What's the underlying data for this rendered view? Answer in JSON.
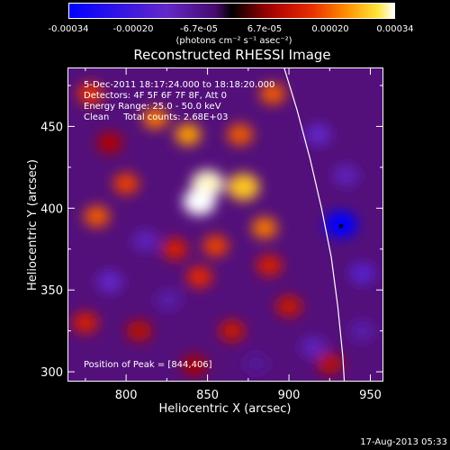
{
  "colorbar": {
    "ticks": [
      "-0.00034",
      "-0.00020",
      "-6.7e-05",
      "6.7e-05",
      "0.00020",
      "0.00034"
    ],
    "units": "(photons cm⁻² s⁻¹ asec⁻²)"
  },
  "title": "Reconstructed RHESSI Image",
  "annotations": {
    "time": "5-Dec-2011 18:17:24.000 to 18:18:20.000",
    "detectors": "Detectors: 4F 5F 6F 7F 8F, Att 0",
    "energy": "Energy Range: 25.0 - 50.0 keV",
    "clean": "Clean     Total counts: 2.68E+03",
    "peak": "Position of Peak = [844,406]"
  },
  "chart_data": {
    "type": "heatmap",
    "title": "Reconstructed RHESSI Image",
    "xlabel": "Heliocentric X (arcsec)",
    "ylabel": "Heliocentric Y (arcsec)",
    "xlim": [
      764,
      958
    ],
    "ylim": [
      294,
      486
    ],
    "xticks": [
      800,
      850,
      900,
      950
    ],
    "yticks": [
      300,
      350,
      400,
      450
    ],
    "clim": [
      -0.00034,
      0.00034
    ],
    "peak_position": [
      844,
      406
    ],
    "marker_position": [
      932,
      389
    ],
    "limb_curve": [
      [
        897,
        486
      ],
      [
        905,
        460
      ],
      [
        913,
        430
      ],
      [
        920,
        400
      ],
      [
        926,
        370
      ],
      [
        930,
        340
      ],
      [
        933,
        310
      ],
      [
        934,
        294
      ]
    ],
    "blobs": [
      {
        "x": 850,
        "y": 415,
        "value": 0.00033
      },
      {
        "x": 845,
        "y": 404,
        "value": 0.00034
      },
      {
        "x": 872,
        "y": 413,
        "value": 0.00028
      },
      {
        "x": 838,
        "y": 445,
        "value": 0.00025
      },
      {
        "x": 818,
        "y": 455,
        "value": 0.00022
      },
      {
        "x": 870,
        "y": 445,
        "value": 0.0002
      },
      {
        "x": 800,
        "y": 415,
        "value": 0.00018
      },
      {
        "x": 782,
        "y": 395,
        "value": 0.0002
      },
      {
        "x": 855,
        "y": 377,
        "value": 0.00018
      },
      {
        "x": 845,
        "y": 358,
        "value": 0.00016
      },
      {
        "x": 830,
        "y": 375,
        "value": 0.00014
      },
      {
        "x": 885,
        "y": 388,
        "value": 0.00022
      },
      {
        "x": 888,
        "y": 365,
        "value": 0.00014
      },
      {
        "x": 778,
        "y": 470,
        "value": 0.00017
      },
      {
        "x": 775,
        "y": 330,
        "value": 0.00014
      },
      {
        "x": 808,
        "y": 325,
        "value": 0.0001
      },
      {
        "x": 890,
        "y": 470,
        "value": 0.0002
      },
      {
        "x": 865,
        "y": 325,
        "value": 0.00012
      },
      {
        "x": 900,
        "y": 340,
        "value": 0.00012
      },
      {
        "x": 925,
        "y": 305,
        "value": 0.0001
      },
      {
        "x": 842,
        "y": 304,
        "value": 8e-05
      },
      {
        "x": 790,
        "y": 440,
        "value": 9e-05
      },
      {
        "x": 812,
        "y": 380,
        "value": -0.00012
      },
      {
        "x": 790,
        "y": 355,
        "value": -0.00014
      },
      {
        "x": 826,
        "y": 344,
        "value": -0.0001
      },
      {
        "x": 918,
        "y": 445,
        "value": -0.00014
      },
      {
        "x": 935,
        "y": 420,
        "value": -0.00012
      },
      {
        "x": 945,
        "y": 360,
        "value": -0.00016
      },
      {
        "x": 932,
        "y": 390,
        "value": -0.00034
      },
      {
        "x": 915,
        "y": 315,
        "value": -0.00012
      },
      {
        "x": 945,
        "y": 325,
        "value": -0.0001
      },
      {
        "x": 880,
        "y": 305,
        "value": -8e-05
      }
    ]
  },
  "timestamp": "17-Aug-2013 05:33"
}
